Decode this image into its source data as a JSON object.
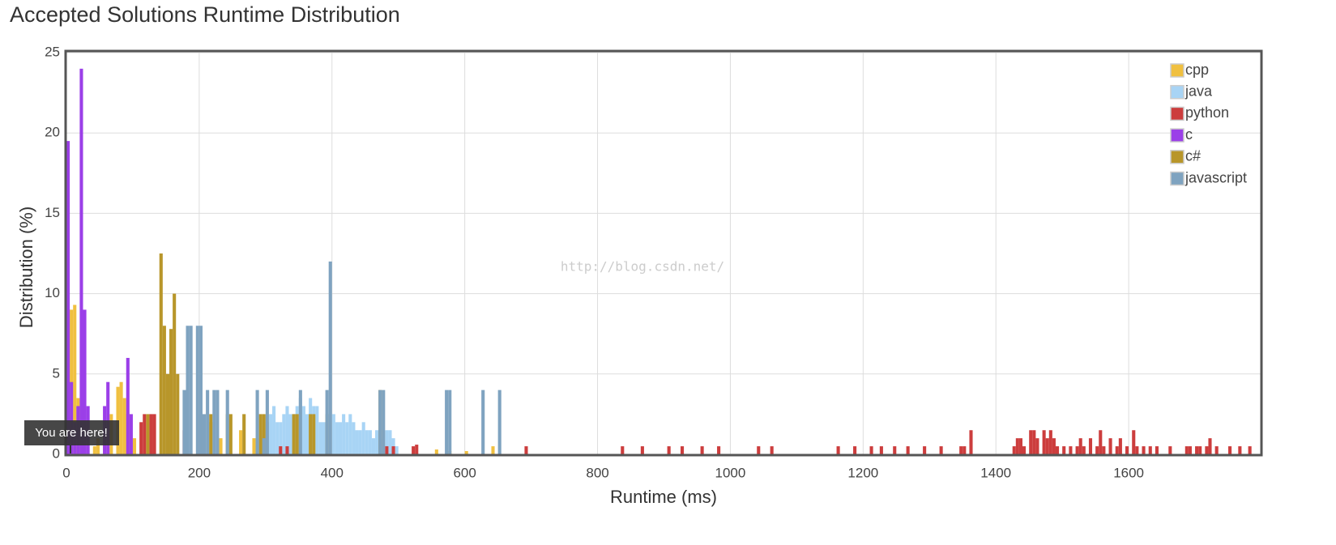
{
  "chart_data": {
    "type": "bar",
    "title": "Accepted Solutions Runtime Distribution",
    "x_label": "Runtime (ms)",
    "y_label": "Distribution (%)",
    "annotation": "You are here!",
    "watermark": "http://blog.csdn.net/",
    "xlim": [
      0,
      1800
    ],
    "ylim": [
      0,
      25
    ],
    "xticks": [
      0,
      200,
      400,
      600,
      800,
      1000,
      1200,
      1400,
      1600
    ],
    "yticks": [
      0,
      5,
      10,
      15,
      20,
      25
    ],
    "grid": true,
    "legend": "top-right",
    "series": [
      {
        "name": "cpp",
        "color": "#f0c040",
        "x": [
          5,
          10,
          15,
          20,
          25,
          40,
          45,
          55,
          65,
          75,
          80,
          85,
          90,
          100,
          215,
          230,
          260,
          280,
          300,
          340,
          555,
          575,
          600,
          640
        ],
        "values": [
          9,
          9.3,
          3.5,
          3,
          1.5,
          0.5,
          1,
          1.5,
          2.5,
          4.2,
          4.5,
          3.5,
          2.5,
          1,
          2,
          1,
          1.5,
          1,
          0.5,
          0.5,
          0.3,
          0.2,
          0.2,
          0.5
        ]
      },
      {
        "name": "java",
        "color": "#a8d4f5",
        "x": [
          285,
          290,
          295,
          300,
          305,
          310,
          315,
          320,
          325,
          330,
          335,
          340,
          345,
          350,
          355,
          360,
          365,
          370,
          375,
          380,
          385,
          390,
          400,
          405,
          410,
          415,
          420,
          425,
          430,
          435,
          440,
          445,
          450,
          455,
          460,
          465,
          470,
          480,
          485,
          490,
          495
        ],
        "values": [
          0.5,
          1,
          1.5,
          2,
          2.5,
          3,
          2,
          2,
          2.5,
          3,
          2.5,
          2.5,
          3,
          3.5,
          3,
          2.5,
          3.5,
          3,
          3,
          2,
          2,
          2.5,
          2.5,
          2,
          2,
          2.5,
          2,
          2.5,
          2,
          1.5,
          1.5,
          2,
          1.5,
          1.5,
          1,
          1.5,
          1,
          1.5,
          1.5,
          1,
          0.5
        ]
      },
      {
        "name": "python",
        "color": "#cc3d3d",
        "x": [
          110,
          115,
          125,
          130,
          175,
          320,
          330,
          480,
          490,
          520,
          525,
          690,
          835,
          865,
          905,
          925,
          955,
          980,
          1040,
          1060,
          1160,
          1185,
          1210,
          1225,
          1245,
          1265,
          1290,
          1315,
          1345,
          1350,
          1360,
          1425,
          1430,
          1435,
          1440,
          1450,
          1455,
          1460,
          1470,
          1475,
          1480,
          1485,
          1490,
          1500,
          1510,
          1520,
          1525,
          1530,
          1540,
          1550,
          1555,
          1560,
          1570,
          1580,
          1585,
          1595,
          1605,
          1610,
          1620,
          1630,
          1640,
          1660,
          1685,
          1690,
          1700,
          1705,
          1715,
          1720,
          1730,
          1750,
          1765,
          1780
        ],
        "values": [
          2,
          2.5,
          2.5,
          2.5,
          1.5,
          0.5,
          0.5,
          0.5,
          0.5,
          0.5,
          0.6,
          0.5,
          0.5,
          0.5,
          0.5,
          0.5,
          0.5,
          0.5,
          0.5,
          0.5,
          0.5,
          0.5,
          0.5,
          0.5,
          0.5,
          0.5,
          0.5,
          0.5,
          0.5,
          0.5,
          1.5,
          0.5,
          1,
          1,
          0.5,
          1.5,
          1.5,
          1,
          1.5,
          1,
          1.5,
          1,
          0.5,
          0.5,
          0.5,
          0.5,
          1,
          0.5,
          1,
          0.5,
          1.5,
          0.5,
          1,
          0.5,
          1,
          0.5,
          1.5,
          0.5,
          0.5,
          0.5,
          0.5,
          0.5,
          0.5,
          0.5,
          0.5,
          0.5,
          0.5,
          1,
          0.5,
          0.5,
          0.5,
          0.5
        ]
      },
      {
        "name": "c",
        "color": "#9b3fe8",
        "x": [
          0,
          5,
          10,
          15,
          20,
          25,
          30,
          55,
          60,
          90,
          95,
          200
        ],
        "values": [
          19.5,
          4.5,
          2,
          3,
          24,
          9,
          3,
          3,
          4.5,
          6,
          2.5,
          1.5
        ]
      },
      {
        "name": "c#",
        "color": "#b8962a",
        "x": [
          120,
          140,
          145,
          150,
          155,
          160,
          165,
          200,
          215,
          240,
          245,
          265,
          290,
          295,
          340,
          345,
          365,
          370,
          390,
          470
        ],
        "values": [
          2.5,
          12.5,
          8,
          5,
          7.8,
          10,
          5,
          2.5,
          2.5,
          2.5,
          2.5,
          2.5,
          2.5,
          2.5,
          2.5,
          2.5,
          2.5,
          2.5,
          2.5,
          4
        ]
      },
      {
        "name": "javascript",
        "color": "#7fa3c0",
        "x": [
          175,
          180,
          185,
          195,
          200,
          205,
          210,
          220,
          225,
          240,
          285,
          295,
          300,
          350,
          390,
          395,
          470,
          475,
          570,
          575,
          625,
          650
        ],
        "values": [
          4,
          8,
          8,
          8,
          8,
          2.5,
          4,
          4,
          4,
          4,
          4,
          1,
          4,
          4,
          4,
          12,
          4,
          4,
          4,
          4,
          4,
          4
        ]
      }
    ]
  }
}
